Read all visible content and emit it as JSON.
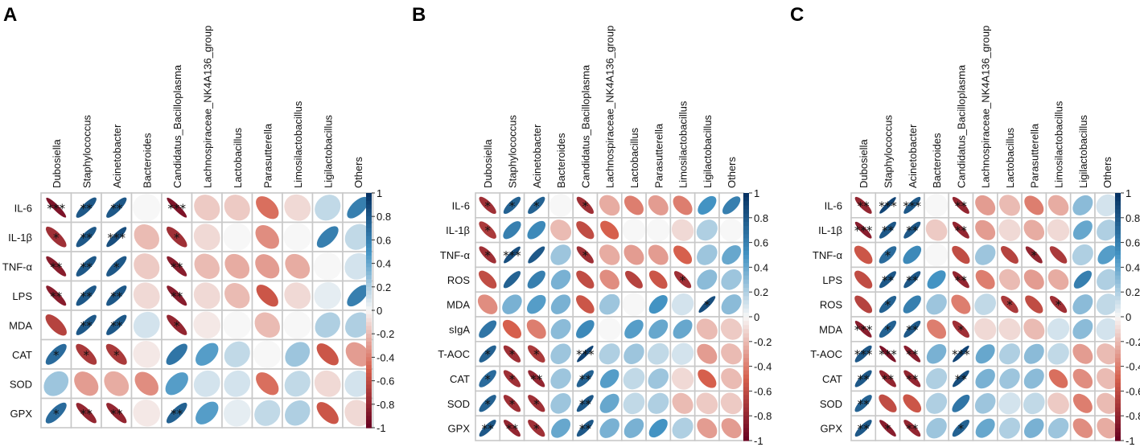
{
  "chart_data": [
    {
      "type": "heatmap",
      "panel_label": "A",
      "rows": [
        "IL-6",
        "IL-1β",
        "TNF-α",
        "LPS",
        "MDA",
        "CAT",
        "SOD",
        "GPX"
      ],
      "columns": [
        "Dubosiella",
        "Staphylococcus",
        "Acinetobacter",
        "Bacteroides",
        "Candidatus_Bacilloplasma",
        "Lachnospiraceae_NK4A136_group",
        "Lactobacillus",
        "Parasutterella",
        "Limosilactobacillus",
        "Ligilactobacillus",
        "Others"
      ],
      "values": [
        [
          -0.9,
          0.8,
          0.8,
          0.0,
          -0.9,
          -0.15,
          -0.15,
          -0.45,
          -0.1,
          0.15,
          0.6
        ],
        [
          -0.75,
          0.8,
          0.85,
          -0.2,
          -0.75,
          -0.1,
          0.0,
          -0.35,
          0.0,
          0.6,
          0.15
        ],
        [
          -0.85,
          0.8,
          0.8,
          -0.15,
          -0.85,
          -0.2,
          -0.25,
          -0.3,
          -0.25,
          0.0,
          0.1
        ],
        [
          -0.85,
          0.8,
          0.8,
          -0.1,
          -0.85,
          -0.1,
          -0.2,
          -0.55,
          -0.1,
          0.05,
          0.6
        ],
        [
          -0.65,
          0.8,
          0.8,
          0.1,
          -0.8,
          -0.05,
          0.0,
          -0.2,
          0.0,
          0.2,
          0.2
        ],
        [
          0.7,
          -0.7,
          -0.7,
          -0.05,
          0.65,
          0.45,
          0.15,
          0.0,
          0.25,
          -0.55,
          -0.3
        ],
        [
          0.25,
          -0.3,
          -0.25,
          -0.35,
          0.45,
          0.1,
          0.1,
          -0.45,
          0.15,
          -0.1,
          0.1
        ],
        [
          0.7,
          -0.8,
          -0.8,
          -0.05,
          0.75,
          0.45,
          0.05,
          0.15,
          0.2,
          -0.55,
          -0.1
        ]
      ],
      "stars": [
        [
          "***",
          "**",
          "**",
          "",
          "***",
          "",
          "",
          "",
          "",
          "",
          ""
        ],
        [
          "*",
          "**",
          "***",
          "",
          "*",
          "",
          "",
          "",
          "",
          "",
          ""
        ],
        [
          "**",
          "**",
          "*",
          "",
          "**",
          "",
          "",
          "",
          "",
          "",
          ""
        ],
        [
          "**",
          "**",
          "**",
          "",
          "**",
          "",
          "",
          "",
          "",
          "",
          ""
        ],
        [
          "",
          "**",
          "**",
          "",
          "*",
          "",
          "",
          "",
          "",
          "",
          ""
        ],
        [
          "*",
          "*",
          "*",
          "",
          "",
          "",
          "",
          "",
          "",
          "",
          ""
        ],
        [
          "",
          "",
          "",
          "",
          "",
          "",
          "",
          "",
          "",
          "",
          ""
        ],
        [
          "*",
          "**",
          "**",
          "",
          "**",
          "",
          "",
          "",
          "",
          "",
          ""
        ]
      ]
    },
    {
      "type": "heatmap",
      "panel_label": "B",
      "rows": [
        "IL-6",
        "IL-1β",
        "TNF-α",
        "ROS",
        "MDA",
        "sIgA",
        "T-AOC",
        "CAT",
        "SOD",
        "GPX"
      ],
      "columns": [
        "Dubosiella",
        "Staphylococcus",
        "Acinetobacter",
        "Bacteroides",
        "Candidatus_Bacilloplasma",
        "Lachnospiraceae_NK4A136_group",
        "Lactobacillus",
        "Parasutterella",
        "Limosilactobacillus",
        "Ligilactobacillus",
        "Others"
      ],
      "values": [
        [
          -0.75,
          0.75,
          0.75,
          0.0,
          -0.75,
          -0.25,
          -0.4,
          -0.3,
          -0.4,
          0.5,
          0.6
        ],
        [
          -0.7,
          0.6,
          0.55,
          -0.2,
          -0.6,
          -0.5,
          0.0,
          0.0,
          -0.1,
          0.2,
          0.0
        ],
        [
          -0.75,
          0.85,
          0.8,
          0.25,
          -0.75,
          -0.25,
          -0.3,
          -0.3,
          -0.5,
          0.25,
          0.4
        ],
        [
          -0.6,
          0.75,
          0.6,
          0.35,
          -0.6,
          -0.35,
          -0.65,
          -0.55,
          -0.75,
          0.3,
          0.25
        ],
        [
          -0.35,
          0.35,
          0.45,
          0.35,
          -0.55,
          0.25,
          0.0,
          0.5,
          0.1,
          0.85,
          0.3
        ],
        [
          0.65,
          -0.5,
          -0.4,
          0.3,
          0.55,
          0.0,
          0.45,
          0.4,
          0.4,
          -0.2,
          -0.15
        ],
        [
          0.75,
          -0.75,
          -0.7,
          0.25,
          0.9,
          0.2,
          0.25,
          0.15,
          0.1,
          -0.3,
          -0.2
        ],
        [
          0.7,
          -0.75,
          -0.8,
          0.25,
          0.75,
          0.45,
          0.15,
          0.25,
          -0.1,
          -0.5,
          -0.2
        ],
        [
          0.75,
          -0.75,
          -0.75,
          0.25,
          0.8,
          0.4,
          0.15,
          0.2,
          -0.2,
          -0.15,
          -0.15
        ],
        [
          0.8,
          -0.8,
          -0.75,
          0.4,
          0.8,
          0.35,
          0.35,
          0.5,
          0.2,
          -0.3,
          -0.3
        ]
      ],
      "stars": [
        [
          "*",
          "*",
          "*",
          "",
          "*",
          "",
          "",
          "",
          "",
          "",
          ""
        ],
        [
          "*",
          "",
          "",
          "",
          "",
          "",
          "",
          "",
          "",
          "",
          ""
        ],
        [
          "*",
          "***",
          "",
          "",
          "*",
          "",
          "",
          "",
          "",
          "",
          ""
        ],
        [
          "",
          "",
          "",
          "",
          "",
          "",
          "",
          "",
          "*",
          "",
          ""
        ],
        [
          "",
          "",
          "",
          "",
          "",
          "",
          "",
          "",
          "",
          "*",
          ""
        ],
        [
          "",
          "",
          "",
          "",
          "",
          "",
          "",
          "",
          "",
          "",
          ""
        ],
        [
          "*",
          "*",
          "*",
          "",
          "***",
          "",
          "",
          "",
          "",
          "",
          ""
        ],
        [
          "*",
          "*",
          "**",
          "",
          "**",
          "",
          "",
          "",
          "",
          "",
          ""
        ],
        [
          "*",
          "*",
          "*",
          "",
          "**",
          "",
          "",
          "",
          "",
          "",
          ""
        ],
        [
          "**",
          "**",
          "*",
          "",
          "**",
          "",
          "",
          "",
          "",
          "",
          ""
        ]
      ]
    },
    {
      "type": "heatmap",
      "panel_label": "C",
      "rows": [
        "IL-6",
        "IL-1β",
        "TNF-α",
        "LPS",
        "ROS",
        "MDA",
        "T-AOC",
        "CAT",
        "SOD",
        "GPX"
      ],
      "columns": [
        "Dubosiella",
        "Staphylococcus",
        "Acinetobacter",
        "Bacteroides",
        "Candidatus_Bacilloplasma",
        "Lachnospiraceae_NK4A136_group",
        "Lactobacillus",
        "Parasutterella",
        "Limosilactobacillus",
        "Ligilactobacillus",
        "Others"
      ],
      "values": [
        [
          -0.8,
          0.9,
          0.8,
          0.0,
          -0.8,
          -0.3,
          -0.2,
          -0.4,
          -0.25,
          0.3,
          0.1
        ],
        [
          -0.85,
          0.8,
          0.8,
          -0.15,
          -0.8,
          -0.3,
          -0.1,
          -0.25,
          -0.1,
          0.4,
          0.2
        ],
        [
          -0.55,
          0.7,
          0.55,
          0.0,
          -0.6,
          0.25,
          -0.65,
          -0.8,
          -0.7,
          0.2,
          0.45
        ],
        [
          -0.6,
          0.8,
          0.8,
          0.5,
          -0.8,
          -0.4,
          -0.2,
          -0.3,
          -0.25,
          0.6,
          0.2
        ],
        [
          -0.65,
          0.75,
          0.6,
          0.25,
          -0.4,
          0.15,
          -0.7,
          -0.6,
          -0.75,
          0.3,
          0.15
        ],
        [
          -0.85,
          0.75,
          0.8,
          -0.4,
          -0.75,
          -0.1,
          -0.1,
          -0.2,
          0.1,
          0.3,
          0.1
        ],
        [
          0.8,
          -0.9,
          -0.85,
          0.35,
          0.9,
          0.4,
          0.2,
          0.3,
          0.15,
          -0.3,
          -0.2
        ],
        [
          0.8,
          -0.8,
          -0.8,
          0.2,
          0.85,
          0.35,
          0.25,
          0.3,
          -0.45,
          -0.35,
          -0.2
        ],
        [
          0.75,
          -0.6,
          -0.55,
          0.2,
          0.65,
          0.25,
          0.1,
          0.15,
          -0.15,
          -0.4,
          -0.2
        ],
        [
          0.8,
          -0.85,
          -0.8,
          0.25,
          0.75,
          0.4,
          0.2,
          0.35,
          0.25,
          -0.35,
          -0.25
        ]
      ],
      "stars": [
        [
          "**",
          "***",
          "***",
          "",
          "**",
          "",
          "",
          "",
          "",
          "",
          ""
        ],
        [
          "***",
          "**",
          "**",
          "",
          "**",
          "",
          "",
          "",
          "",
          "",
          ""
        ],
        [
          "",
          "*",
          "",
          "",
          "",
          "",
          "",
          "*",
          "",
          "",
          ""
        ],
        [
          "",
          "**",
          "**",
          "",
          "**",
          "",
          "",
          "",
          "",
          "",
          ""
        ],
        [
          "",
          "*",
          "",
          "",
          "",
          "",
          "*",
          "",
          "*",
          "",
          ""
        ],
        [
          "***",
          "*",
          "**",
          "",
          "*",
          "",
          "",
          "",
          "",
          "",
          ""
        ],
        [
          "***",
          "***",
          "**",
          "",
          "***",
          "",
          "",
          "",
          "",
          "",
          ""
        ],
        [
          "**",
          "**",
          "**",
          "",
          "**",
          "",
          "",
          "",
          "",
          "",
          ""
        ],
        [
          "**",
          "",
          "",
          "",
          "",
          "",
          "",
          "",
          "",
          "",
          ""
        ],
        [
          "**",
          "*",
          "**",
          "",
          "*",
          "",
          "",
          "",
          "",
          "",
          ""
        ]
      ]
    }
  ],
  "colorbar": {
    "ticks": [
      "1",
      "0.8",
      "0.6",
      "0.4",
      "0.2",
      "0",
      "-0.2",
      "-0.4",
      "-0.6",
      "-0.8",
      "-1"
    ],
    "tick_values": [
      1,
      0.8,
      0.6,
      0.4,
      0.2,
      0,
      -0.2,
      -0.4,
      -0.6,
      -0.8,
      -1
    ]
  },
  "colors": {
    "neg_strong": "#67001f",
    "neg_mid": "#d6604d",
    "zero": "#f7f7f7",
    "pos_mid": "#4393c3",
    "pos_strong": "#053061",
    "grid": "#c8c8c8"
  }
}
